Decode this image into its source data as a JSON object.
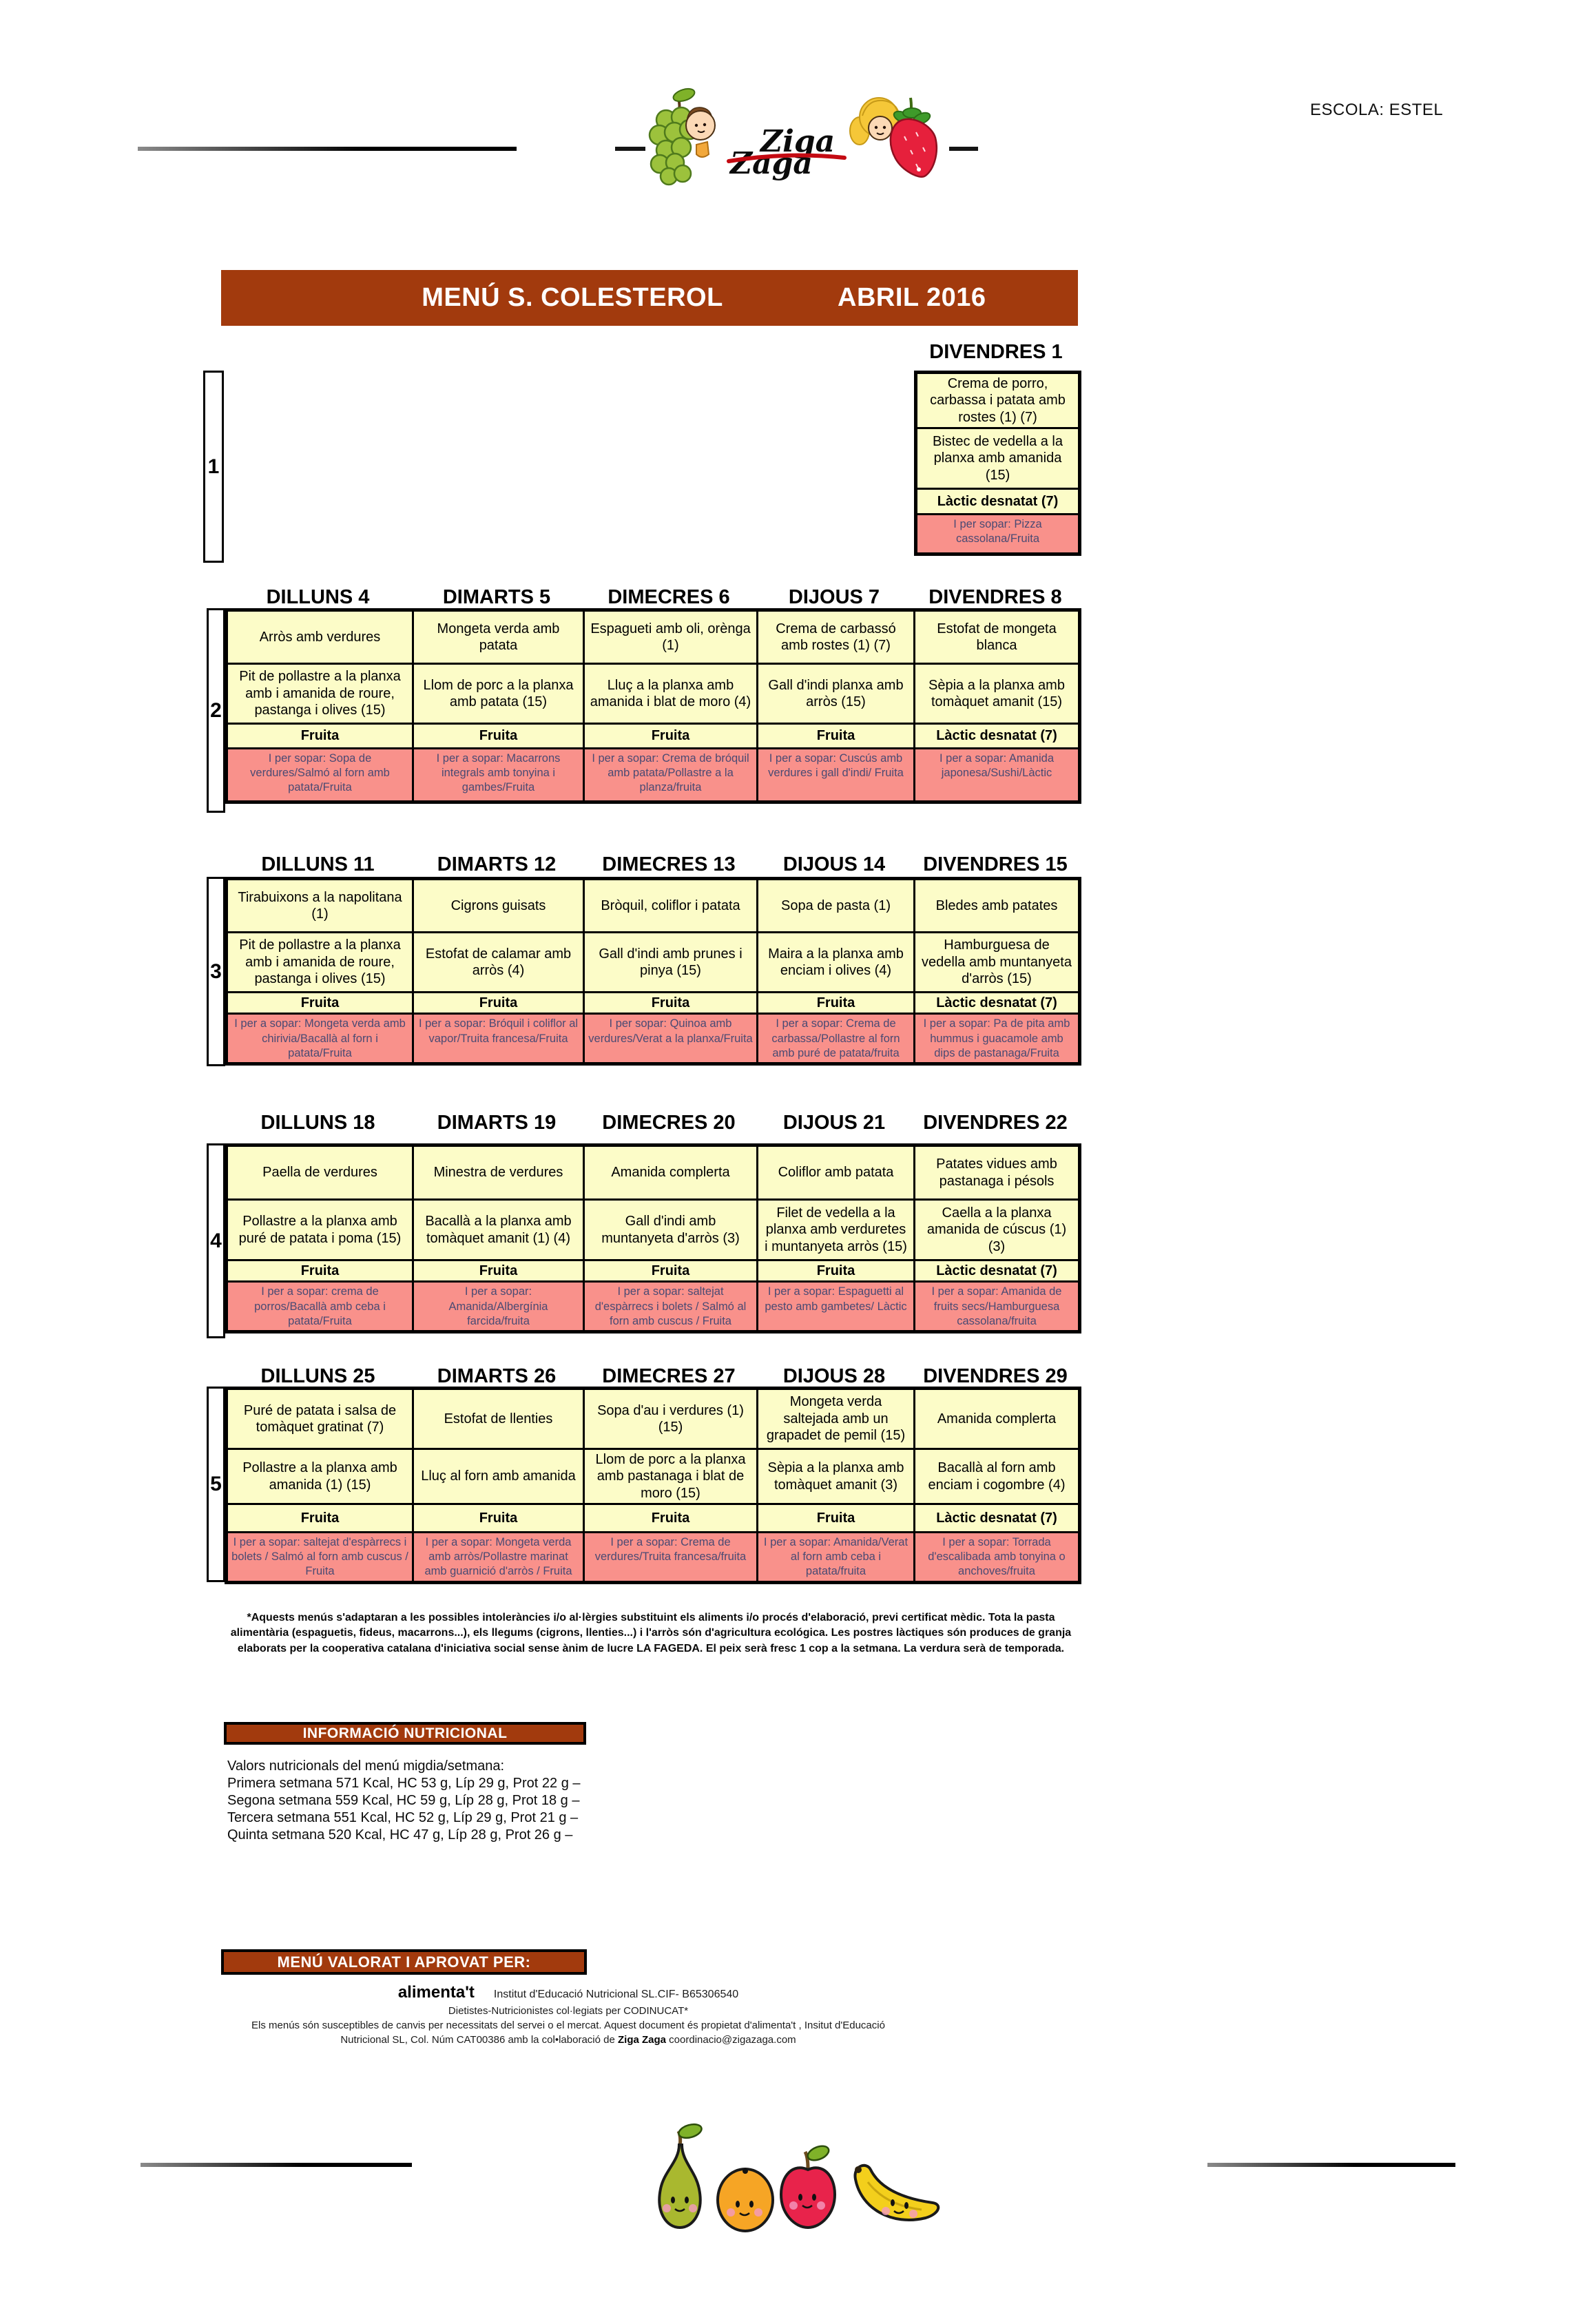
{
  "header": {
    "school_label": "ESCOLA: ESTEL"
  },
  "logo": {
    "word1": "Ziga",
    "word2": "Zaga"
  },
  "title_bar": {
    "menu_title": "MENÚ S. COLESTEROL",
    "month": "ABRIL 2016"
  },
  "colors": {
    "accent_brown": "#A23A0D",
    "cell_yellow": "#FCFCC8",
    "supper_pink": "#F9918B",
    "supper_text": "#4A4A73"
  },
  "icons": [
    "grapes-boy-icon",
    "strawberry-girl-icon",
    "pear-icon",
    "orange-icon",
    "apple-icon",
    "banana-icon"
  ],
  "weeks": [
    {
      "number": "1",
      "days": [
        {
          "name": "DIVENDRES 1",
          "first": "Crema de porro, carbassa i patata amb rostes (1) (7)",
          "second": "Bistec de vedella a la planxa amb amanida (15)",
          "dessert": "Làctic desnatat (7)",
          "supper": "I per sopar: Pizza cassolana/Fruita"
        }
      ]
    },
    {
      "number": "2",
      "days": [
        {
          "name": "DILLUNS 4",
          "first": "Arròs amb verdures",
          "second": "Pit de pollastre a la planxa amb i amanida de roure, pastanga i olives (15)",
          "dessert": "Fruita",
          "supper": "I per sopar: Sopa de verdures/Salmó al forn amb patata/Fruita"
        },
        {
          "name": "DIMARTS 5",
          "first": "Mongeta verda amb patata",
          "second": "Llom de porc a la planxa amb patata (15)",
          "dessert": "Fruita",
          "supper": "I per a sopar: Macarrons integrals amb tonyina i gambes/Fruita"
        },
        {
          "name": "DIMECRES 6",
          "first": "Espagueti amb oli, orènga (1)",
          "second": "Lluç a la planxa amb amanida i blat de moro (4)",
          "dessert": "Fruita",
          "supper": "I per a sopar: Crema de bróquil amb patata/Pollastre a la planza/fruita"
        },
        {
          "name": "DIJOUS 7",
          "first": "Crema de carbassó amb rostes (1) (7)",
          "second": "Gall d'indi planxa amb arròs (15)",
          "dessert": "Fruita",
          "supper": "I per a sopar:  Cuscús amb verdures i gall d'indi/ Fruita"
        },
        {
          "name": "DIVENDRES 8",
          "first": "Estofat de mongeta blanca",
          "second": "Sèpia a la planxa amb tomàquet amanit (15)",
          "dessert": "Làctic desnatat (7)",
          "supper": "I per a sopar: Amanida japonesa/Sushi/Làctic"
        }
      ]
    },
    {
      "number": "3",
      "days": [
        {
          "name": "DILLUNS 11",
          "first": "Tirabuixons a la napolitana (1)",
          "second": "Pit de pollastre a la planxa amb i amanida de roure, pastanga i olives (15)",
          "dessert": "Fruita",
          "supper": "I per a sopar: Mongeta verda amb chirivia/Bacallà al forn i patata/Fruita"
        },
        {
          "name": "DIMARTS 12",
          "first": "Cigrons guisats",
          "second": "Estofat de calamar amb arròs (4)",
          "dessert": "Fruita",
          "supper": "I per a sopar: Bróquil  i coliflor al vapor/Truita francesa/Fruita"
        },
        {
          "name": "DIMECRES 13",
          "first": "Bròquil, coliflor i patata",
          "second": "Gall d'indi amb prunes i pinya (15)",
          "dessert": "Fruita",
          "supper": "I per sopar: Quinoa amb verdures/Verat a la planxa/Fruita"
        },
        {
          "name": "DIJOUS 14",
          "first": "Sopa de pasta (1)",
          "second": "Maira a la planxa amb enciam i olives (4)",
          "dessert": "Fruita",
          "supper": "I per a sopar: Crema de carbassa/Pollastre al forn amb puré de patata/fruita"
        },
        {
          "name": "DIVENDRES 15",
          "first": "Bledes amb patates",
          "second": "Hamburguesa de vedella amb muntanyeta d'arròs (15)",
          "dessert": "Làctic desnatat (7)",
          "supper": "I per a sopar: Pa de pita amb hummus i guacamole amb dips de pastanaga/Fruita"
        }
      ]
    },
    {
      "number": "4",
      "days": [
        {
          "name": "DILLUNS 18",
          "first": "Paella de verdures",
          "second": "Pollastre a la planxa amb puré de patata i poma (15)",
          "dessert": "Fruita",
          "supper": "I per a sopar: crema de porros/Bacallà amb ceba i patata/Fruita"
        },
        {
          "name": "DIMARTS 19",
          "first": "Minestra de verdures",
          "second": "Bacallà a la planxa amb tomàquet amanit (1) (4)",
          "dessert": "Fruita",
          "supper": "I per a sopar: Amanida/Albergínia farcida/fruita"
        },
        {
          "name": "DIMECRES 20",
          "first": "Amanida complerta",
          "second": "Gall d'indi amb muntanyeta d'arròs (3)",
          "dessert": "Fruita",
          "supper": "I per a sopar: saltejat d'espàrrecs i bolets / Salmó al forn amb cuscus / Fruita"
        },
        {
          "name": "DIJOUS 21",
          "first": "Coliflor amb patata",
          "second": "Filet de vedella a la planxa amb verduretes i muntanyeta arròs (15)",
          "dessert": "Fruita",
          "supper": "I per a sopar: Espaguetti al pesto amb gambetes/ Làctic"
        },
        {
          "name": "DIVENDRES 22",
          "first": "Patates vidues amb pastanaga i pésols",
          "second": "Caella a la planxa amanida de cúscus (1) (3)",
          "dessert": "Làctic desnatat (7)",
          "supper": "I per a sopar: Amanida de fruits secs/Hamburguesa cassolana/fruita"
        }
      ]
    },
    {
      "number": "5",
      "days": [
        {
          "name": "DILLUNS 25",
          "first": "Puré de patata i salsa de tomàquet gratinat (7)",
          "second": "Pollastre a la planxa amb amanida (1) (15)",
          "dessert": "Fruita",
          "supper": "I per a sopar: saltejat d'espàrrecs i bolets / Salmó al forn amb cuscus / Fruita"
        },
        {
          "name": "DIMARTS 26",
          "first": "Estofat de llenties",
          "second": "Lluç al forn amb amanida",
          "dessert": "Fruita",
          "supper": "I per a sopar: Mongeta verda amb arròs/Pollastre marinat  amb guarnició d'arròs / Fruita"
        },
        {
          "name": "DIMECRES 27",
          "first": "Sopa d'au i verdures (1) (15)",
          "second": "Llom de porc a la planxa amb  pastanaga i blat de moro  (15)",
          "dessert": "Fruita",
          "supper": "I per a sopar: Crema de verdures/Truita francesa/fruita"
        },
        {
          "name": "DIJOUS 28",
          "first": "Mongeta verda saltejada amb un grapadet de pemil (15)",
          "second": "Sèpia a la planxa amb tomàquet amanit (3)",
          "dessert": "Fruita",
          "supper": "I per a sopar: Amanida/Verat al forn amb ceba i patata/fruita"
        },
        {
          "name": "DIVENDRES 29",
          "first": "Amanida complerta",
          "second": "Bacallà al forn amb enciam i cogombre (4)",
          "dessert": "Làctic desnatat (7)",
          "supper": "I per a sopar: Torrada d'escalibada amb tonyina o anchoves/fruita"
        }
      ]
    }
  ],
  "footnote": {
    "text": "*Aquests menús s'adaptaran a les possibles intoleràncies i/o al·lèrgies substituint els aliments i/o procés d'elaboració, previ certificat mèdic. Tota la pasta alimentària (espaguetis, fideus, macarrons...), els llegums (cigrons, llenties...) i l'arròs són d'agricultura ecológica. Les postres làctiques són produces de granja elaborats per la cooperativa catalana d'iniciativa social sense ànim de lucre LA FAGEDA. El peix serà fresc 1 cop a la setmana. La verdura serà de temporada."
  },
  "nutrition": {
    "header": "INFORMACIÓ NUTRICIONAL",
    "intro": "Valors nutricionals del menú migdia/setmana:",
    "lines": [
      "Primera setmana  571 Kcal, HC 53 g, Líp 29 g, Prot 22 g –",
      "Segona setmana  559 Kcal, HC 59 g, Líp 28 g, Prot 18 g –",
      "Tercera setmana  551 Kcal, HC 52 g, Líp 29 g, Prot 21 g –",
      "Quinta setmana  520 Kcal, HC 47 g, Líp 28 g, Prot 26 g –"
    ]
  },
  "approval": {
    "header": "MENÚ VALORAT I APROVAT PER:",
    "brand": "alimenta't",
    "entity": "Institut d'Educació Nutricional SL.CIF- B65306540",
    "line2": "Dietistes-Nutricionistes col·legiats per CODINUCAT*",
    "line3": "Els menús són susceptibles de canvis per necessitats del servei o el mercat. Aquest document és propietat d'alimenta't , Insitut d'Educació",
    "line4_pre": "Nutricional SL,  Col.   Núm CAT00386  amb la col•laboració de ",
    "line4_brand": "Ziga Zaga",
    "line4_post": " coordinacio@zigazaga.com"
  }
}
